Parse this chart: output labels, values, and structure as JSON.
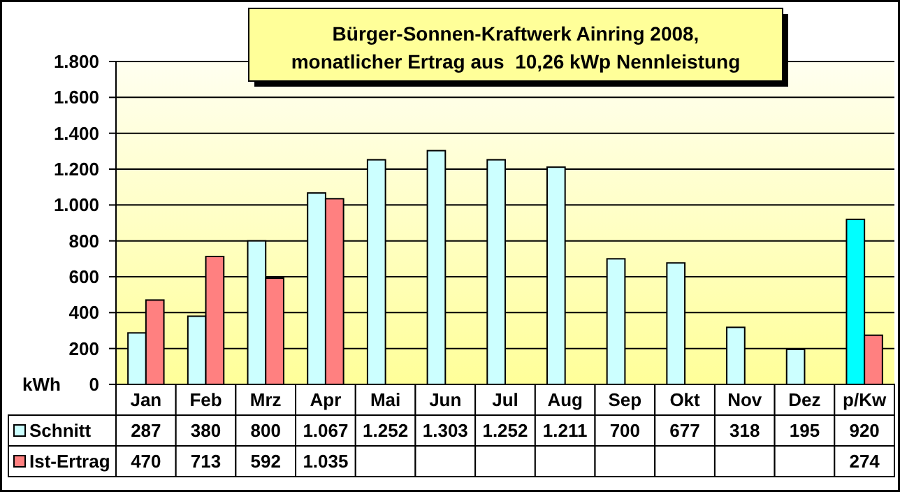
{
  "chart_data": {
    "type": "bar",
    "title": "Bürger-Sonnen-Kraftwerk Ainring 2008,\nmonatlicher Ertrag aus  10,26 kWp Nennleistung",
    "ylabel": "kWh",
    "categories": [
      "Jan",
      "Feb",
      "Mrz",
      "Apr",
      "Mai",
      "Jun",
      "Jul",
      "Aug",
      "Sep",
      "Okt",
      "Nov",
      "Dez",
      "p/Kw"
    ],
    "series": [
      {
        "name": "Schnitt",
        "color": "#ccffff",
        "colors": [
          "#ccffff",
          "#ccffff",
          "#ccffff",
          "#ccffff",
          "#ccffff",
          "#ccffff",
          "#ccffff",
          "#ccffff",
          "#ccffff",
          "#ccffff",
          "#ccffff",
          "#ccffff",
          "#00ffff"
        ],
        "values": [
          287,
          380,
          800,
          1067,
          1252,
          1303,
          1252,
          1211,
          700,
          677,
          318,
          195,
          920
        ],
        "value_labels": [
          "287",
          "380",
          "800",
          "1.067",
          "1.252",
          "1.303",
          "1.252",
          "1.211",
          "700",
          "677",
          "318",
          "195",
          "920"
        ]
      },
      {
        "name": "Ist-Ertrag",
        "color": "#ff8080",
        "values": [
          470,
          713,
          592,
          1035,
          null,
          null,
          null,
          null,
          null,
          null,
          null,
          null,
          274
        ],
        "value_labels": [
          "470",
          "713",
          "592",
          "1.035",
          null,
          null,
          null,
          null,
          null,
          null,
          null,
          null,
          "274"
        ]
      }
    ],
    "ylim": [
      0,
      1800
    ],
    "yticks": [
      0,
      200,
      400,
      600,
      800,
      {
        "value": 1000,
        "label": "1.000"
      },
      {
        "value": 1200,
        "label": "1.200"
      },
      {
        "value": 1400,
        "label": "1.400"
      },
      {
        "value": 1600,
        "label": "1.600"
      },
      {
        "value": 1800,
        "label": "1.800"
      }
    ],
    "grid": "y",
    "legend": "bottom"
  }
}
